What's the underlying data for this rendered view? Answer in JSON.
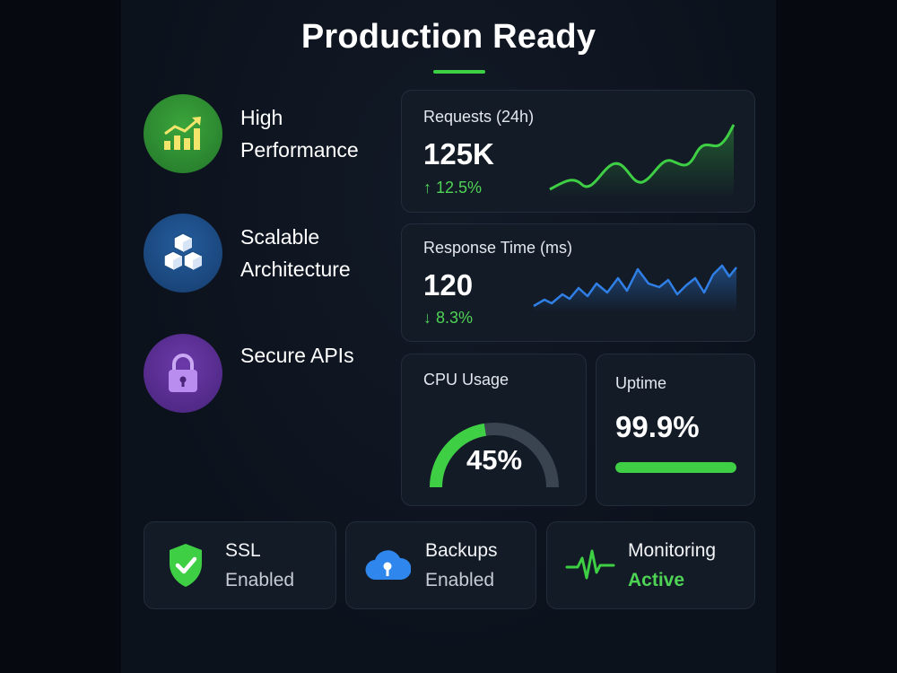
{
  "header": {
    "title": "Production Ready"
  },
  "features": [
    {
      "line1": "High",
      "line2": "Performance",
      "icon": "chart-up-icon",
      "color": "#2d8a2e"
    },
    {
      "line1": "Scalable",
      "line2": "Architecture",
      "icon": "cubes-icon",
      "color": "#1c4e86"
    },
    {
      "line1": "Secure APIs",
      "line2": "",
      "icon": "lock-icon",
      "color": "#5b2f94"
    }
  ],
  "metrics": {
    "requests": {
      "label": "Requests (24h)",
      "value": "125K",
      "delta": "↑ 12.5%",
      "trend": "up",
      "color": "#3ecf45"
    },
    "response_time": {
      "label": "Response Time (ms)",
      "value": "120",
      "delta": "↓ 8.3%",
      "trend": "down",
      "color": "#2f7fe6"
    },
    "cpu": {
      "label": "CPU Usage",
      "value": "45%",
      "percent": 45,
      "color": "#3ecf45"
    },
    "uptime": {
      "label": "Uptime",
      "value": "99.9%",
      "percent": 99.9,
      "color": "#3ecf45"
    }
  },
  "status": [
    {
      "title": "SSL",
      "subtitle": "Enabled",
      "icon": "shield-check-icon"
    },
    {
      "title": "Backups",
      "subtitle": "Enabled",
      "icon": "cloud-icon"
    },
    {
      "title": "Monitoring",
      "subtitle": "Active",
      "icon": "heartbeat-icon"
    }
  ]
}
